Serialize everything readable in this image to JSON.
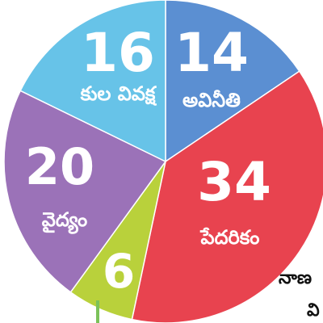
{
  "chart_data": {
    "type": "pie",
    "slices": [
      {
        "value": 14,
        "label": "అవినీతి",
        "color": "#5b8fd2"
      },
      {
        "value": 34,
        "label": "పేదరికం",
        "color": "#e8434f"
      },
      {
        "value": 6,
        "label": "",
        "color": "#b9d13b"
      },
      {
        "value": 20,
        "label": "వైద్యం",
        "color": "#9b72b8"
      },
      {
        "value": 16,
        "label": "కుల వివక్ష",
        "color": "#67c3e8"
      }
    ]
  },
  "side_text": {
    "line1": "నాణ",
    "line2": "వి"
  }
}
